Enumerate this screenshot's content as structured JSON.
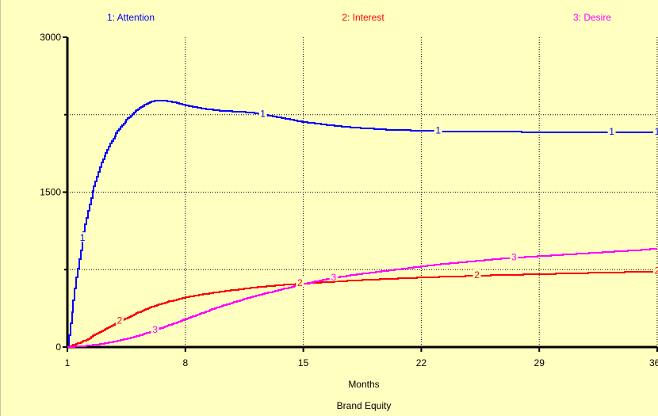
{
  "chart_data": {
    "type": "line",
    "title": "Brand Equity",
    "xlabel": "Months",
    "ylabel": "",
    "xlim": [
      1,
      36
    ],
    "ylim": [
      0,
      3000
    ],
    "x_ticks": [
      1,
      8,
      15,
      22,
      29,
      36
    ],
    "x_tick_labels": [
      "1",
      "8",
      "15",
      "22",
      "29",
      "36"
    ],
    "y_ticks": [
      0,
      1500,
      3000
    ],
    "y_tick_labels": [
      "0",
      "1500",
      "3000"
    ],
    "grid": true,
    "legend_position": "top",
    "series": [
      {
        "name": "1: Attention",
        "marker": "1",
        "color": "#0000ff",
        "x": [
          1,
          1.5,
          2,
          2.5,
          3,
          3.5,
          4,
          4.5,
          5,
          5.5,
          6,
          6.5,
          7,
          7.5,
          8,
          9,
          10,
          11,
          12,
          13,
          14,
          15,
          16,
          17,
          18,
          19,
          20,
          21,
          22,
          23,
          24,
          25,
          26,
          27,
          28,
          29,
          30,
          31,
          32,
          33,
          34,
          35,
          36
        ],
        "y": [
          0,
          650,
          1150,
          1520,
          1780,
          1960,
          2100,
          2200,
          2280,
          2340,
          2380,
          2390,
          2380,
          2365,
          2340,
          2310,
          2290,
          2280,
          2270,
          2240,
          2210,
          2180,
          2160,
          2140,
          2125,
          2115,
          2105,
          2100,
          2095,
          2090,
          2088,
          2086,
          2085,
          2084,
          2083,
          2082,
          2082,
          2081,
          2081,
          2080,
          2080,
          2080,
          2080
        ],
        "marker_x": [
          1.9,
          12.6,
          23.0,
          33.3,
          36
        ]
      },
      {
        "name": "2: Interest",
        "marker": "2",
        "color": "#ff0000",
        "x": [
          1,
          2,
          3,
          4,
          5,
          6,
          7,
          8,
          9,
          10,
          11,
          12,
          13,
          14,
          15,
          16,
          17,
          18,
          19,
          20,
          21,
          22,
          23,
          24,
          25,
          26,
          27,
          28,
          29,
          30,
          31,
          32,
          33,
          34,
          35,
          36
        ],
        "y": [
          0,
          60,
          150,
          240,
          320,
          390,
          440,
          480,
          510,
          535,
          555,
          575,
          590,
          605,
          615,
          625,
          635,
          645,
          652,
          660,
          667,
          673,
          679,
          684,
          689,
          694,
          698,
          702,
          706,
          710,
          714,
          718,
          722,
          725,
          728,
          731
        ],
        "marker_x": [
          4.1,
          14.8,
          25.3,
          36
        ]
      },
      {
        "name": "3: Desire",
        "marker": "3",
        "color": "#ff00ff",
        "x": [
          1,
          2,
          3,
          4,
          5,
          6,
          7,
          8,
          9,
          10,
          11,
          12,
          13,
          14,
          15,
          16,
          17,
          18,
          19,
          20,
          21,
          22,
          23,
          24,
          25,
          26,
          27,
          28,
          29,
          30,
          31,
          32,
          33,
          34,
          35,
          36
        ],
        "y": [
          0,
          10,
          30,
          60,
          100,
          150,
          210,
          270,
          330,
          390,
          440,
          490,
          530,
          570,
          610,
          645,
          675,
          700,
          720,
          740,
          760,
          780,
          800,
          815,
          830,
          845,
          860,
          870,
          880,
          890,
          900,
          910,
          920,
          930,
          940,
          955
        ],
        "marker_x": [
          6.2,
          16.8,
          27.5
        ]
      }
    ]
  }
}
